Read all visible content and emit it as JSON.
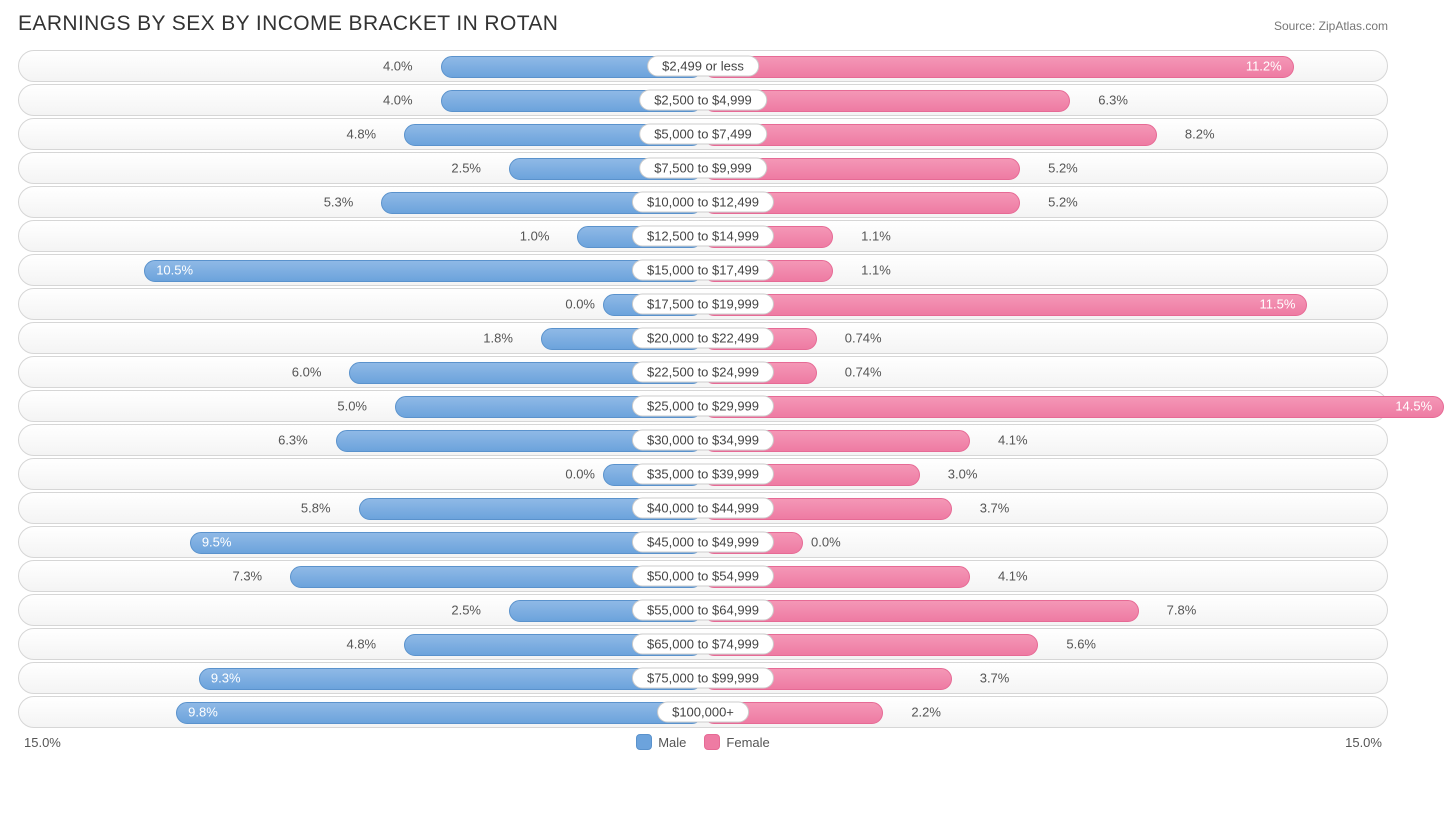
{
  "header": {
    "title": "EARNINGS BY SEX BY INCOME BRACKET IN ROTAN",
    "source": "Source: ZipAtlas.com"
  },
  "chart": {
    "type": "diverging-bar",
    "axis_max": 15.0,
    "axis_left_label": "15.0%",
    "axis_right_label": "15.0%",
    "male_color": "#6ca3dc",
    "female_color": "#ee7ba3",
    "track_border": "#d6d6d6",
    "inside_threshold": 8.5,
    "rows": [
      {
        "label": "$2,499 or less",
        "male": 4.0,
        "male_txt": "4.0%",
        "female": 11.2,
        "female_txt": "11.2%"
      },
      {
        "label": "$2,500 to $4,999",
        "male": 4.0,
        "male_txt": "4.0%",
        "female": 6.3,
        "female_txt": "6.3%"
      },
      {
        "label": "$5,000 to $7,499",
        "male": 4.8,
        "male_txt": "4.8%",
        "female": 8.2,
        "female_txt": "8.2%"
      },
      {
        "label": "$7,500 to $9,999",
        "male": 2.5,
        "male_txt": "2.5%",
        "female": 5.2,
        "female_txt": "5.2%"
      },
      {
        "label": "$10,000 to $12,499",
        "male": 5.3,
        "male_txt": "5.3%",
        "female": 5.2,
        "female_txt": "5.2%"
      },
      {
        "label": "$12,500 to $14,999",
        "male": 1.0,
        "male_txt": "1.0%",
        "female": 1.1,
        "female_txt": "1.1%"
      },
      {
        "label": "$15,000 to $17,499",
        "male": 10.5,
        "male_txt": "10.5%",
        "female": 1.1,
        "female_txt": "1.1%"
      },
      {
        "label": "$17,500 to $19,999",
        "male": 0.0,
        "male_txt": "0.0%",
        "female": 11.5,
        "female_txt": "11.5%"
      },
      {
        "label": "$20,000 to $22,499",
        "male": 1.8,
        "male_txt": "1.8%",
        "female": 0.74,
        "female_txt": "0.74%"
      },
      {
        "label": "$22,500 to $24,999",
        "male": 6.0,
        "male_txt": "6.0%",
        "female": 0.74,
        "female_txt": "0.74%"
      },
      {
        "label": "$25,000 to $29,999",
        "male": 5.0,
        "male_txt": "5.0%",
        "female": 14.5,
        "female_txt": "14.5%"
      },
      {
        "label": "$30,000 to $34,999",
        "male": 6.3,
        "male_txt": "6.3%",
        "female": 4.1,
        "female_txt": "4.1%"
      },
      {
        "label": "$35,000 to $39,999",
        "male": 0.0,
        "male_txt": "0.0%",
        "female": 3.0,
        "female_txt": "3.0%"
      },
      {
        "label": "$40,000 to $44,999",
        "male": 5.8,
        "male_txt": "5.8%",
        "female": 3.7,
        "female_txt": "3.7%"
      },
      {
        "label": "$45,000 to $49,999",
        "male": 9.5,
        "male_txt": "9.5%",
        "female": 0.0,
        "female_txt": "0.0%"
      },
      {
        "label": "$50,000 to $54,999",
        "male": 7.3,
        "male_txt": "7.3%",
        "female": 4.1,
        "female_txt": "4.1%"
      },
      {
        "label": "$55,000 to $64,999",
        "male": 2.5,
        "male_txt": "2.5%",
        "female": 7.8,
        "female_txt": "7.8%"
      },
      {
        "label": "$65,000 to $74,999",
        "male": 4.8,
        "male_txt": "4.8%",
        "female": 5.6,
        "female_txt": "5.6%"
      },
      {
        "label": "$75,000 to $99,999",
        "male": 9.3,
        "male_txt": "9.3%",
        "female": 3.7,
        "female_txt": "3.7%"
      },
      {
        "label": "$100,000+",
        "male": 9.8,
        "male_txt": "9.8%",
        "female": 2.2,
        "female_txt": "2.2%"
      }
    ]
  },
  "legend": {
    "male": "Male",
    "female": "Female"
  }
}
